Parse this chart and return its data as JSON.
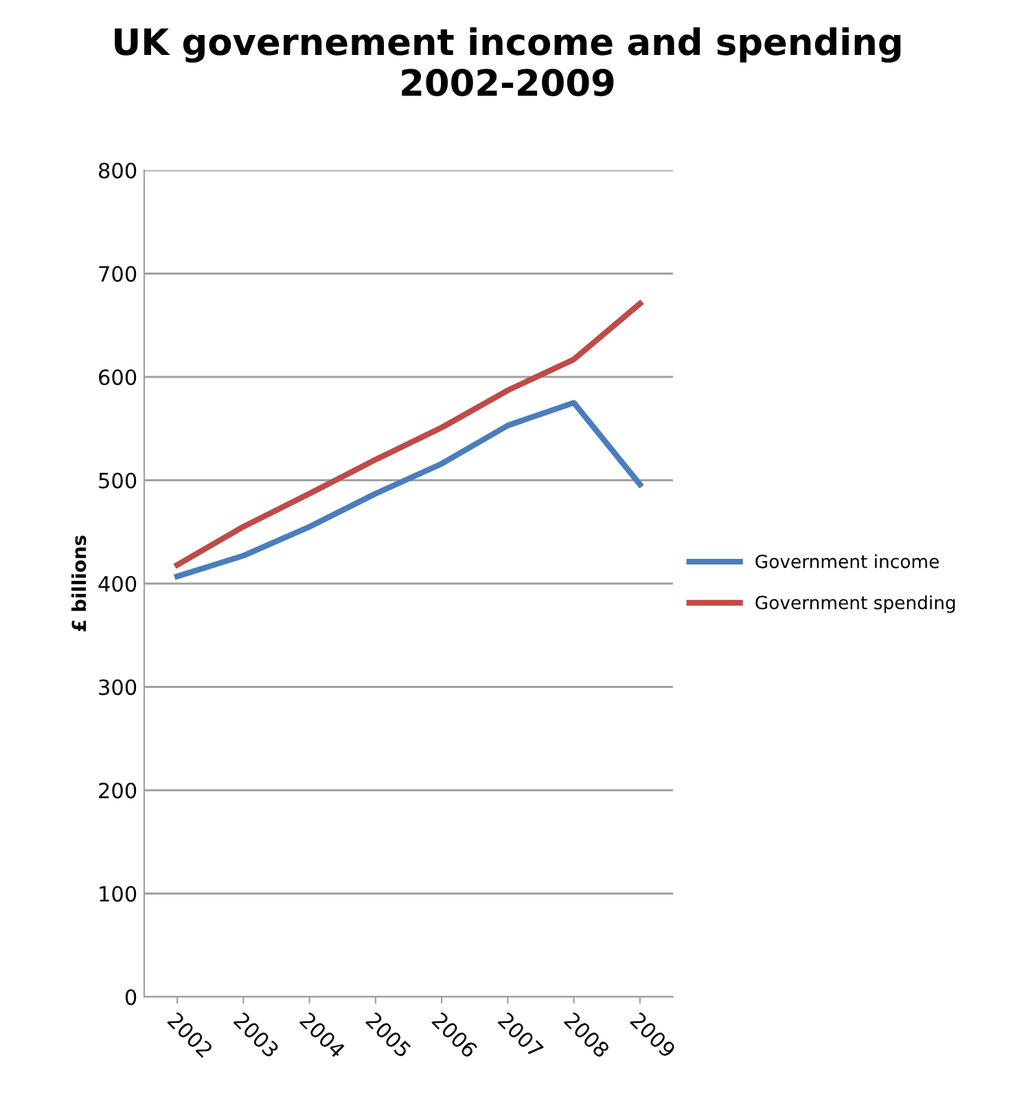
{
  "chart_data": {
    "type": "line",
    "title": "UK governement income and spending\n2002-2009",
    "ylabel": "£ billions",
    "categories": [
      "2002",
      "2003",
      "2004",
      "2005",
      "2006",
      "2007",
      "2008",
      "2009"
    ],
    "series": [
      {
        "name": "Government income",
        "color": "#4a7ebb",
        "values": [
          407,
          427,
          455,
          487,
          516,
          553,
          575,
          496
        ]
      },
      {
        "name": "Government spending",
        "color": "#be4b48",
        "values": [
          418,
          455,
          487,
          520,
          551,
          587,
          617,
          671
        ]
      }
    ],
    "ylim": [
      0,
      800
    ],
    "yticks": [
      0,
      100,
      200,
      300,
      400,
      500,
      600,
      700,
      800
    ],
    "grid": "y",
    "legend": "right",
    "marker": "none",
    "line_style": "solid"
  }
}
